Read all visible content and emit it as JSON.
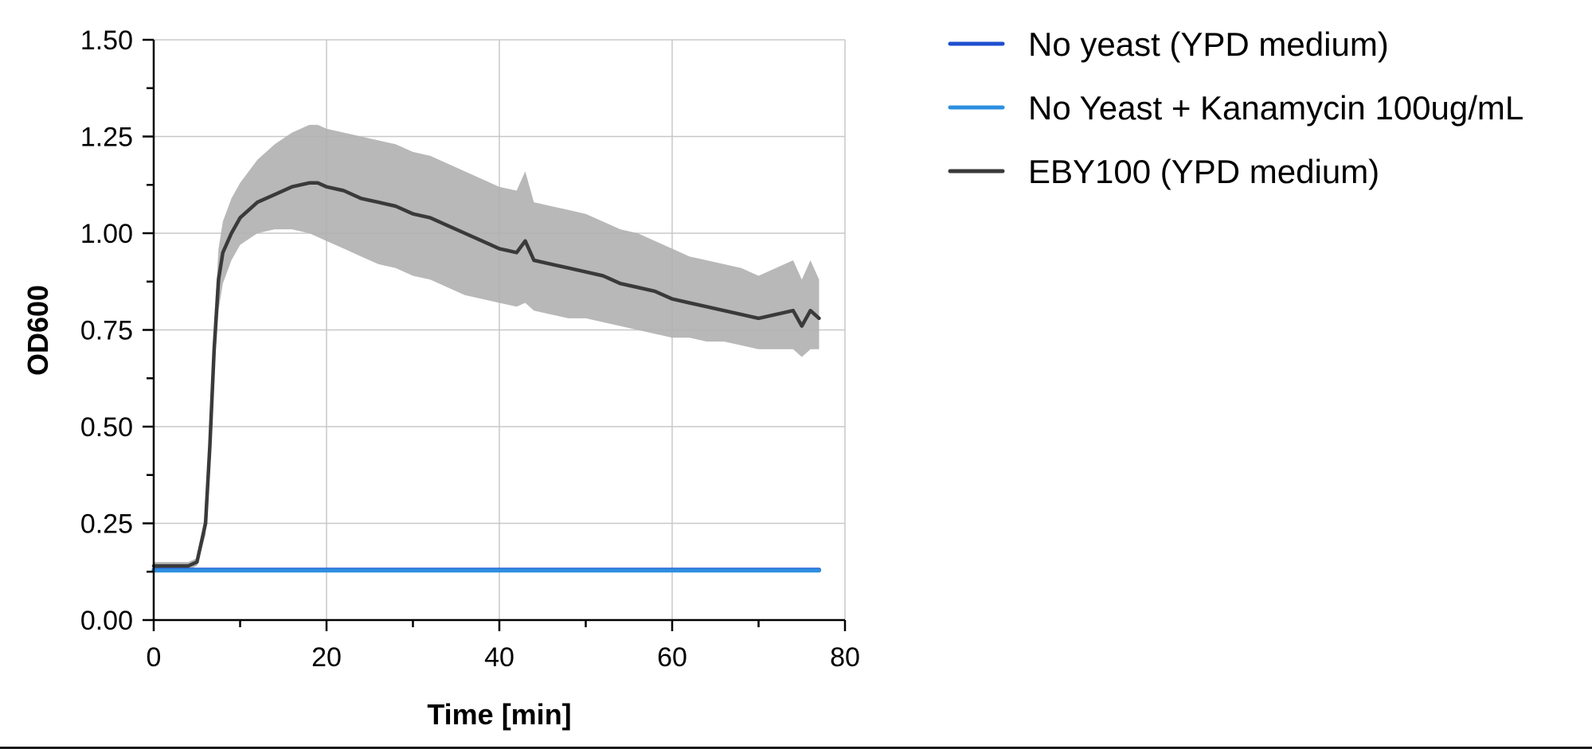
{
  "chart_data": {
    "type": "line",
    "title": "",
    "xlabel": "Time [min]",
    "ylabel": "OD600",
    "xlim": [
      0,
      80
    ],
    "ylim": [
      0,
      1.5
    ],
    "xticks": [
      0,
      20,
      40,
      60,
      80
    ],
    "xtick_labels": [
      "0",
      "20",
      "40",
      "60",
      "80"
    ],
    "yticks": [
      0,
      0.25,
      0.5,
      0.75,
      1.0,
      1.25,
      1.5
    ],
    "ytick_labels": [
      "0.00",
      "0.25",
      "0.50",
      "0.75",
      "1.00",
      "1.25",
      "1.50"
    ],
    "grid": true,
    "legend_position": "outside-right-top",
    "series": [
      {
        "name": "No yeast (YPD medium)",
        "color": "#1f4fcf",
        "x": [
          0,
          10,
          20,
          30,
          40,
          50,
          60,
          70,
          77
        ],
        "y": [
          0.13,
          0.13,
          0.13,
          0.13,
          0.13,
          0.13,
          0.13,
          0.13,
          0.13
        ]
      },
      {
        "name": "No Yeast + Kanamycin 100ug/mL",
        "color": "#2d8fe0",
        "x": [
          0,
          10,
          20,
          30,
          40,
          50,
          60,
          70,
          77
        ],
        "y": [
          0.128,
          0.128,
          0.128,
          0.128,
          0.128,
          0.128,
          0.128,
          0.128,
          0.128
        ]
      },
      {
        "name": "EBY100 (YPD medium)",
        "color": "#3a3a3a",
        "band_color": "#b0b0b0",
        "x": [
          0,
          2,
          4,
          5,
          6,
          6.5,
          7,
          7.5,
          8,
          9,
          10,
          12,
          14,
          16,
          18,
          19,
          20,
          22,
          24,
          26,
          28,
          30,
          32,
          34,
          36,
          38,
          40,
          42,
          43,
          44,
          46,
          48,
          50,
          52,
          54,
          56,
          58,
          60,
          62,
          64,
          66,
          68,
          70,
          72,
          74,
          75,
          76,
          77
        ],
        "y": [
          0.14,
          0.14,
          0.14,
          0.15,
          0.25,
          0.45,
          0.7,
          0.88,
          0.95,
          1.0,
          1.04,
          1.08,
          1.1,
          1.12,
          1.13,
          1.13,
          1.12,
          1.11,
          1.09,
          1.08,
          1.07,
          1.05,
          1.04,
          1.02,
          1.0,
          0.98,
          0.96,
          0.95,
          0.98,
          0.93,
          0.92,
          0.91,
          0.9,
          0.89,
          0.87,
          0.86,
          0.85,
          0.83,
          0.82,
          0.81,
          0.8,
          0.79,
          0.78,
          0.79,
          0.8,
          0.76,
          0.8,
          0.78
        ],
        "y_lower": [
          0.13,
          0.13,
          0.13,
          0.14,
          0.22,
          0.4,
          0.63,
          0.8,
          0.87,
          0.93,
          0.97,
          1.0,
          1.01,
          1.01,
          1.0,
          0.99,
          0.98,
          0.96,
          0.94,
          0.92,
          0.91,
          0.89,
          0.88,
          0.86,
          0.84,
          0.83,
          0.82,
          0.81,
          0.82,
          0.8,
          0.79,
          0.78,
          0.78,
          0.77,
          0.76,
          0.75,
          0.74,
          0.73,
          0.73,
          0.72,
          0.72,
          0.71,
          0.7,
          0.7,
          0.7,
          0.68,
          0.7,
          0.7
        ],
        "y_upper": [
          0.15,
          0.15,
          0.15,
          0.16,
          0.28,
          0.5,
          0.77,
          0.96,
          1.03,
          1.09,
          1.13,
          1.19,
          1.23,
          1.26,
          1.28,
          1.28,
          1.27,
          1.26,
          1.25,
          1.24,
          1.23,
          1.21,
          1.2,
          1.18,
          1.16,
          1.14,
          1.12,
          1.11,
          1.16,
          1.08,
          1.07,
          1.06,
          1.05,
          1.03,
          1.01,
          1.0,
          0.98,
          0.96,
          0.94,
          0.93,
          0.92,
          0.91,
          0.89,
          0.91,
          0.93,
          0.88,
          0.93,
          0.88
        ]
      }
    ]
  }
}
